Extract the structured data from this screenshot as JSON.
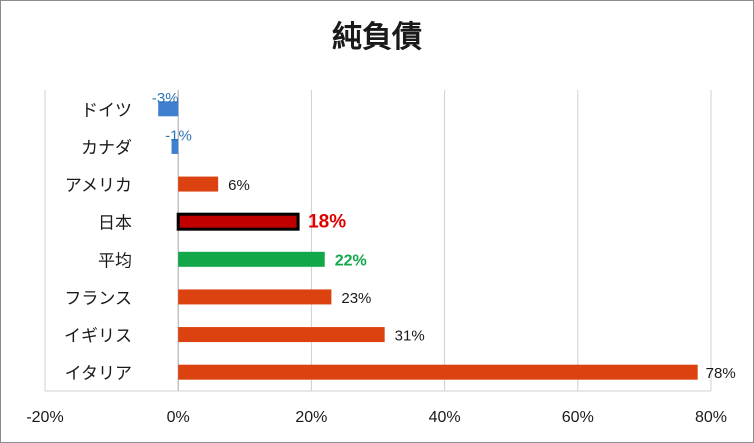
{
  "chart_data": {
    "type": "bar",
    "orientation": "horizontal",
    "title": "純負債",
    "categories": [
      "ドイツ",
      "カナダ",
      "アメリカ",
      "日本",
      "平均",
      "フランス",
      "イギリス",
      "イタリア"
    ],
    "values": [
      -3,
      -1,
      6,
      18,
      22,
      23,
      31,
      78
    ],
    "data_labels": [
      "-3%",
      "-1%",
      "6%",
      "18%",
      "22%",
      "23%",
      "31%",
      "78%"
    ],
    "bar_colors": [
      "#3f7fd0",
      "#3f7fd0",
      "#dc4210",
      "#c00000",
      "#12a84a",
      "#dc4210",
      "#dc4210",
      "#dc4210"
    ],
    "label_colors": [
      "#2e75b6",
      "#2e75b6",
      "#1a1a1a",
      "#e00000",
      "#12a84a",
      "#1a1a1a",
      "#1a1a1a",
      "#1a1a1a"
    ],
    "label_bold": [
      false,
      false,
      false,
      true,
      true,
      false,
      false,
      false
    ],
    "highlight": "日本",
    "xlim": [
      -20,
      80
    ],
    "x_ticks": [
      -20,
      0,
      20,
      40,
      60,
      80
    ],
    "x_tick_labels": [
      "-20%",
      "0%",
      "20%",
      "40%",
      "60%",
      "80%"
    ],
    "grid": "vertical"
  }
}
